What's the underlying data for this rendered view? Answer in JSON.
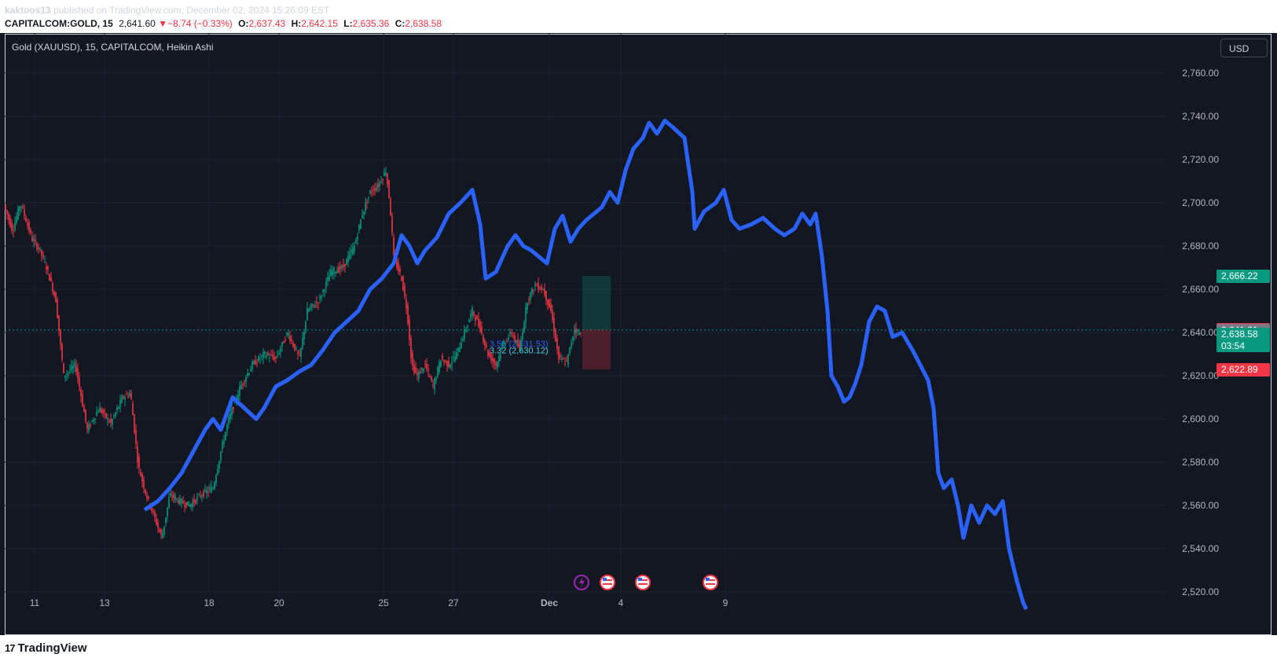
{
  "header": {
    "author": "kaktoos13",
    "published_text": "published on TradingView.com, December 02, 2024 15:26:09 EST",
    "symbol": "CAPITALCOM:GOLD, 15",
    "last": "2,641.60",
    "change": "−8.74 (−0.33%)",
    "o_label": "O:",
    "o": "2,637.43",
    "h_label": "H:",
    "h": "2,642.15",
    "l_label": "L:",
    "l": "2,635.36",
    "c_label": "C:",
    "c": "2,638.58"
  },
  "legend": {
    "title": "Gold (XAUUSD), 15, CAPITALCOM, Heikin Ashi"
  },
  "currency_button": "USD",
  "colors": {
    "background": "#131722",
    "candle_up": "#089981",
    "candle_down": "#f23645",
    "projection": "#2962ff",
    "axis_text": "#b2b5be"
  },
  "price_tags": [
    {
      "label": "2,666.22",
      "color": "#089981"
    },
    {
      "label": "2,641.38",
      "color": "#f23645"
    },
    {
      "label": "2,641.21",
      "color": "#787b86"
    },
    {
      "label": "2,638.58",
      "color": "#089981",
      "sub": "03:54"
    },
    {
      "label": "2,622.89",
      "color": "#f23645"
    }
  ],
  "position_tool_text": {
    "upper": "3.56 (2,631.53)",
    "lower": "3.32 (2,630.12)"
  },
  "event_icons": [
    "lightning-icon",
    "us-flag-icon",
    "us-flag-icon",
    "us-flag-icon"
  ],
  "footer": {
    "brand": "TradingView",
    "mark": "17"
  },
  "chart_data": {
    "type": "line",
    "title": "Gold (XAUUSD), 15, CAPITALCOM, Heikin Ashi",
    "y_ticks": [
      2520,
      2540,
      2560,
      2580,
      2600,
      2620,
      2640,
      2660,
      2680,
      2700,
      2720,
      2740,
      2760
    ],
    "y_tick_labels": [
      "2,520.00",
      "2,540.00",
      "2,560.00",
      "2,580.00",
      "2,600.00",
      "2,620.00",
      "2,640.00",
      "2,660.00",
      "2,680.00",
      "2,700.00",
      "2,720.00",
      "2,740.00",
      "2,760.00"
    ],
    "ylim": [
      2509,
      2771
    ],
    "x_ticks": [
      "11",
      "13",
      "18",
      "20",
      "25",
      "27",
      "Dec",
      "4",
      "9"
    ],
    "grid": true,
    "series": [
      {
        "kind": "heikin-ashi candles (price)",
        "points": [
          [
            0,
            2698
          ],
          [
            10,
            2687
          ],
          [
            20,
            2700
          ],
          [
            35,
            2683
          ],
          [
            45,
            2678
          ],
          [
            55,
            2668
          ],
          [
            65,
            2655
          ],
          [
            75,
            2620
          ],
          [
            90,
            2625
          ],
          [
            105,
            2595
          ],
          [
            120,
            2605
          ],
          [
            135,
            2598
          ],
          [
            150,
            2610
          ],
          [
            160,
            2612
          ],
          [
            170,
            2578
          ],
          [
            180,
            2565
          ],
          [
            190,
            2555
          ],
          [
            200,
            2545
          ],
          [
            210,
            2565
          ],
          [
            222,
            2562
          ],
          [
            235,
            2560
          ],
          [
            250,
            2565
          ],
          [
            265,
            2568
          ],
          [
            275,
            2585
          ],
          [
            285,
            2600
          ],
          [
            300,
            2615
          ],
          [
            315,
            2625
          ],
          [
            330,
            2630
          ],
          [
            345,
            2628
          ],
          [
            360,
            2640
          ],
          [
            375,
            2628
          ],
          [
            385,
            2650
          ],
          [
            400,
            2655
          ],
          [
            415,
            2668
          ],
          [
            430,
            2670
          ],
          [
            445,
            2680
          ],
          [
            455,
            2695
          ],
          [
            465,
            2705
          ],
          [
            475,
            2708
          ],
          [
            485,
            2715
          ],
          [
            490,
            2700
          ],
          [
            495,
            2675
          ],
          [
            505,
            2665
          ],
          [
            512,
            2650
          ],
          [
            518,
            2625
          ],
          [
            525,
            2620
          ],
          [
            535,
            2625
          ],
          [
            545,
            2615
          ],
          [
            555,
            2628
          ],
          [
            565,
            2625
          ],
          [
            575,
            2630
          ],
          [
            585,
            2640
          ],
          [
            595,
            2650
          ],
          [
            605,
            2642
          ],
          [
            615,
            2630
          ],
          [
            625,
            2625
          ],
          [
            635,
            2635
          ],
          [
            645,
            2640
          ],
          [
            655,
            2632
          ],
          [
            665,
            2655
          ],
          [
            675,
            2662
          ],
          [
            685,
            2660
          ],
          [
            695,
            2650
          ],
          [
            705,
            2628
          ],
          [
            715,
            2626
          ],
          [
            725,
            2642
          ],
          [
            735,
            2638
          ]
        ]
      },
      {
        "kind": "projection (blue)",
        "points": [
          [
            178,
            2558
          ],
          [
            195,
            2562
          ],
          [
            210,
            2568
          ],
          [
            225,
            2575
          ],
          [
            240,
            2585
          ],
          [
            255,
            2595
          ],
          [
            265,
            2600
          ],
          [
            275,
            2595
          ],
          [
            290,
            2610
          ],
          [
            305,
            2605
          ],
          [
            320,
            2600
          ],
          [
            330,
            2605
          ],
          [
            345,
            2615
          ],
          [
            360,
            2618
          ],
          [
            375,
            2622
          ],
          [
            390,
            2625
          ],
          [
            405,
            2632
          ],
          [
            420,
            2640
          ],
          [
            435,
            2645
          ],
          [
            450,
            2650
          ],
          [
            465,
            2660
          ],
          [
            480,
            2665
          ],
          [
            495,
            2672
          ],
          [
            505,
            2685
          ],
          [
            515,
            2680
          ],
          [
            525,
            2672
          ],
          [
            535,
            2678
          ],
          [
            550,
            2684
          ],
          [
            565,
            2695
          ],
          [
            580,
            2700
          ],
          [
            595,
            2706
          ],
          [
            605,
            2690
          ],
          [
            612,
            2665
          ],
          [
            625,
            2668
          ],
          [
            640,
            2680
          ],
          [
            650,
            2685
          ],
          [
            660,
            2680
          ],
          [
            670,
            2678
          ],
          [
            680,
            2675
          ],
          [
            690,
            2672
          ],
          [
            700,
            2688
          ],
          [
            710,
            2694
          ],
          [
            720,
            2682
          ],
          [
            730,
            2688
          ],
          [
            740,
            2692
          ],
          [
            750,
            2695
          ],
          [
            760,
            2698
          ],
          [
            770,
            2705
          ],
          [
            780,
            2700
          ],
          [
            790,
            2715
          ],
          [
            800,
            2725
          ],
          [
            812,
            2730
          ],
          [
            820,
            2737
          ],
          [
            830,
            2732
          ],
          [
            840,
            2738
          ],
          [
            850,
            2735
          ],
          [
            865,
            2730
          ],
          [
            875,
            2705
          ],
          [
            878,
            2688
          ],
          [
            890,
            2696
          ],
          [
            905,
            2700
          ],
          [
            915,
            2706
          ],
          [
            925,
            2692
          ],
          [
            935,
            2688
          ],
          [
            950,
            2690
          ],
          [
            965,
            2693
          ],
          [
            980,
            2688
          ],
          [
            992,
            2685
          ],
          [
            1005,
            2688
          ],
          [
            1015,
            2695
          ],
          [
            1025,
            2690
          ],
          [
            1032,
            2695
          ],
          [
            1040,
            2675
          ],
          [
            1047,
            2650
          ],
          [
            1052,
            2620
          ],
          [
            1060,
            2615
          ],
          [
            1068,
            2608
          ],
          [
            1075,
            2610
          ],
          [
            1082,
            2616
          ],
          [
            1090,
            2625
          ],
          [
            1100,
            2645
          ],
          [
            1110,
            2652
          ],
          [
            1120,
            2650
          ],
          [
            1130,
            2638
          ],
          [
            1142,
            2640
          ],
          [
            1155,
            2632
          ],
          [
            1165,
            2625
          ],
          [
            1175,
            2618
          ],
          [
            1182,
            2605
          ],
          [
            1188,
            2575
          ],
          [
            1195,
            2568
          ],
          [
            1205,
            2572
          ],
          [
            1213,
            2560
          ],
          [
            1220,
            2545
          ],
          [
            1230,
            2560
          ],
          [
            1240,
            2552
          ],
          [
            1250,
            2560
          ],
          [
            1260,
            2556
          ],
          [
            1270,
            2562
          ],
          [
            1278,
            2540
          ],
          [
            1288,
            2525
          ],
          [
            1296,
            2515
          ],
          [
            1300,
            2512
          ]
        ]
      }
    ],
    "x_tick_positions_note": "labels along time axis"
  }
}
